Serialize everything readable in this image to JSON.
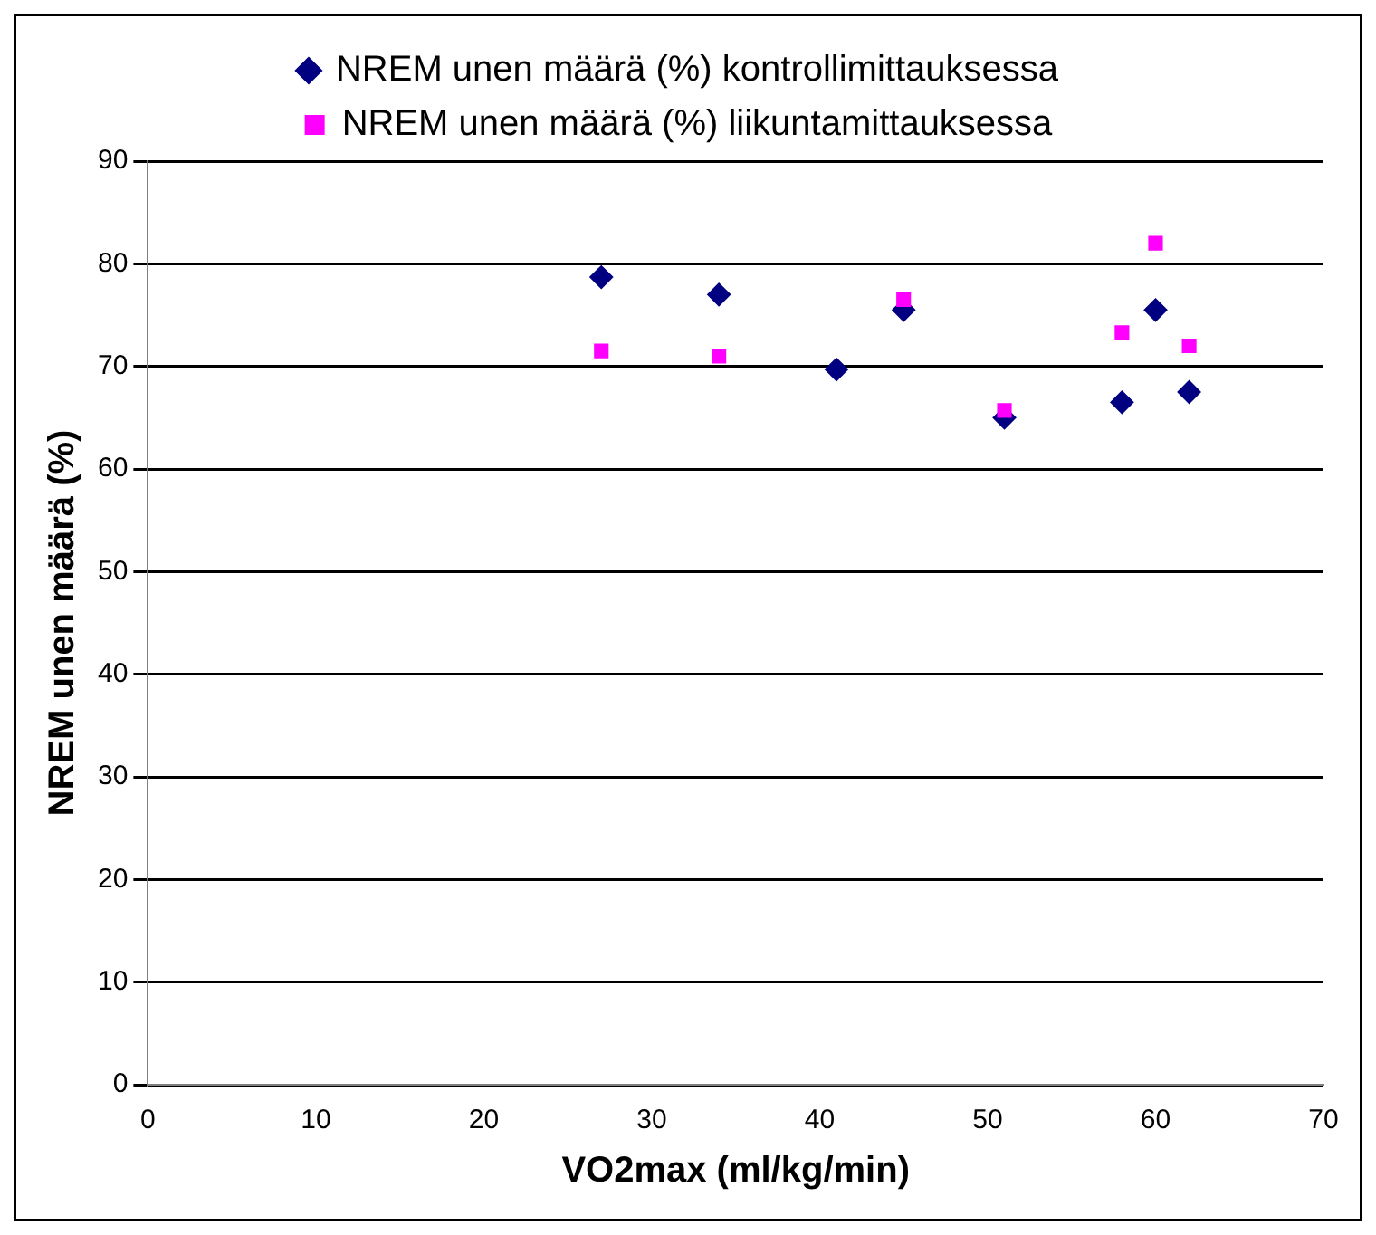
{
  "chart_data": {
    "type": "scatter",
    "xlabel": "VO2max (ml/kg/min)",
    "ylabel": "NREM unen määrä (%)",
    "series": [
      {
        "name": "NREM unen määrä (%) kontrollimittauksessa",
        "color": "#000080",
        "marker": "diamond",
        "x": [
          27,
          34,
          41,
          45,
          51,
          58,
          60,
          62
        ],
        "values": [
          78.7,
          77,
          69.7,
          75.5,
          65,
          66.5,
          75.5,
          67.5
        ]
      },
      {
        "name": "NREM unen määrä (%) liikuntamittauksessa",
        "color": "#ff00ff",
        "marker": "square",
        "x": [
          27,
          34,
          45,
          51,
          58,
          60,
          62
        ],
        "values": [
          71.5,
          71,
          76.5,
          65.7,
          73.3,
          82,
          72
        ]
      }
    ],
    "xlim": [
      0,
      70
    ],
    "xticks": [
      0,
      10,
      20,
      30,
      40,
      50,
      60,
      70
    ],
    "ylim": [
      0,
      90
    ],
    "yticks": [
      0,
      10,
      20,
      30,
      40,
      50,
      60,
      70,
      80,
      90
    ],
    "grid": "y",
    "legend": "top"
  }
}
